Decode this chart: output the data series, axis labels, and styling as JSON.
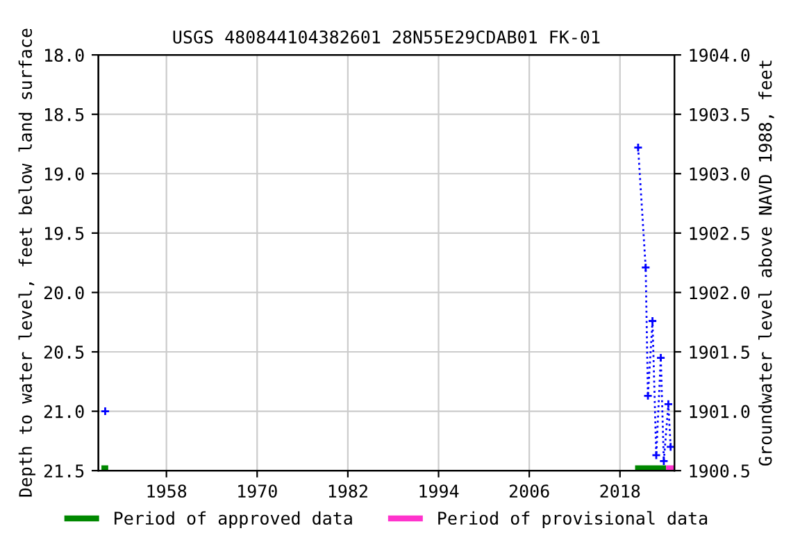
{
  "chart_data": {
    "type": "line",
    "title": "USGS 480844104382601 28N55E29CDAB01 FK-01",
    "ylabel": "Depth to water level, feet below land surface",
    "y2label": "Groundwater level above NAVD 1988, feet",
    "x": [
      1949.9,
      1985,
      2020.4,
      2021.4,
      2021.7,
      2022.3,
      2022.8,
      2023.4,
      2023.8,
      2024.4,
      2024.7
    ],
    "series": [
      {
        "color": "#0000ff",
        "values": [
          21.0,
          null,
          18.78,
          19.79,
          20.87,
          20.24,
          21.37,
          20.55,
          21.42,
          20.94,
          21.3
        ]
      },
      {
        "name": "Period of approved data",
        "color": "#008800",
        "x": [
          1949.4,
          1950.3,
          1985,
          2020.0,
          2024.1
        ],
        "values": [
          21.48,
          21.48,
          null,
          21.48,
          21.48
        ],
        "line_style": "solid",
        "marker": "none"
      },
      {
        "name": "Period of provisional data",
        "color": "#ff33cc",
        "x": [
          2024.1,
          2025.2
        ],
        "values": [
          21.48,
          21.48
        ],
        "line_style": "solid",
        "marker": "none"
      }
    ],
    "xlim": [
      1949,
      2025.2
    ],
    "xticks": [
      1958,
      1970,
      1982,
      1994,
      2006,
      2018
    ],
    "ylim": [
      21.5,
      18.0
    ],
    "yticks": [
      {
        "value": 18,
        "label": "18.0"
      },
      18.5,
      {
        "value": 19,
        "label": "19.0"
      },
      19.5,
      {
        "value": 20,
        "label": "20.0"
      },
      20.5,
      {
        "value": 21,
        "label": "21.0"
      },
      21.5
    ],
    "y2lim": [
      1900.5,
      1904.0
    ],
    "y2ticks": [
      1900.5,
      {
        "value": 1901,
        "label": "1901.0"
      },
      1901.5,
      {
        "value": 1902,
        "label": "1902.0"
      },
      1902.5,
      {
        "value": 1903,
        "label": "1903.0"
      },
      1903.5,
      {
        "value": 1904,
        "label": "1904.0"
      }
    ],
    "grid": true,
    "legend": "bottom",
    "marker": "cross",
    "line_style": "dotted"
  }
}
